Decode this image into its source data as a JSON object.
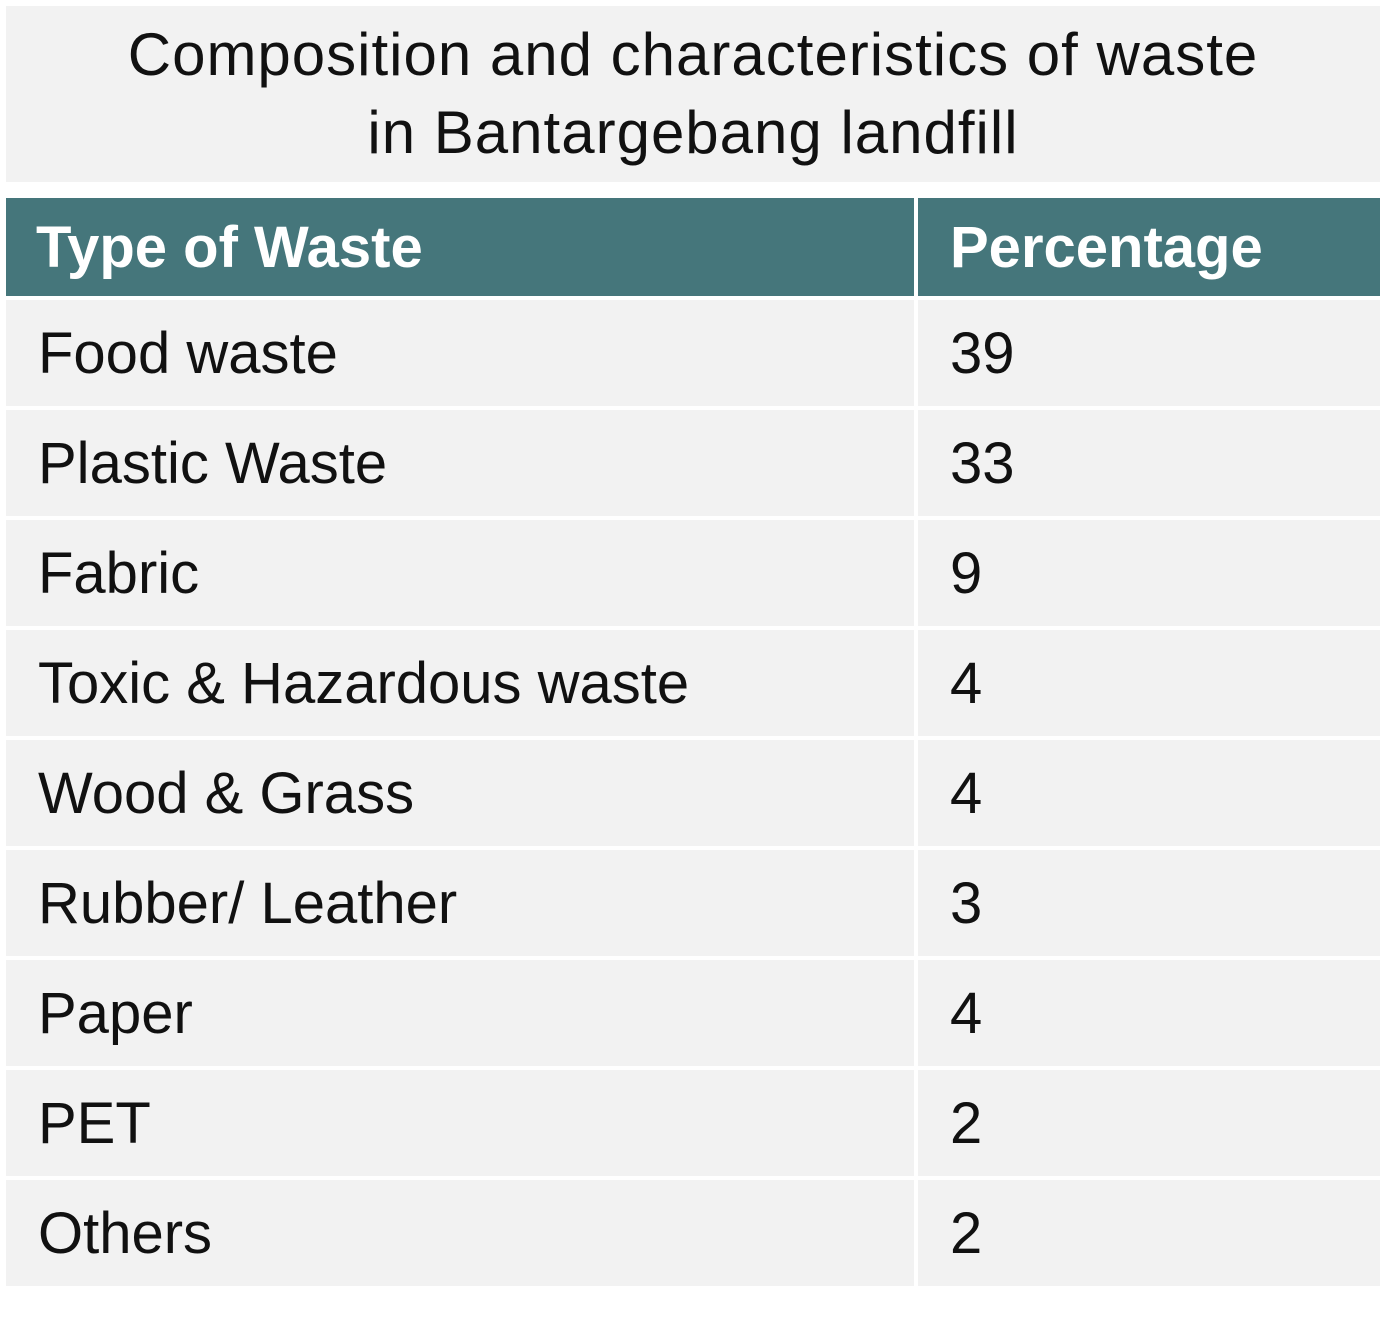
{
  "chart_data": {
    "type": "table",
    "title": "Composition and characteristics of waste in Bantargebang landfill",
    "columns": [
      "Type of Waste",
      "Percentage"
    ],
    "rows": [
      {
        "type": "Food waste",
        "percentage": "39"
      },
      {
        "type": "Plastic Waste",
        "percentage": "33"
      },
      {
        "type": "Fabric",
        "percentage": "9"
      },
      {
        "type": "Toxic & Hazardous waste",
        "percentage": "4"
      },
      {
        "type": "Wood & Grass",
        "percentage": "4"
      },
      {
        "type": "Rubber/ Leather",
        "percentage": "3"
      },
      {
        "type": "Paper",
        "percentage": "4"
      },
      {
        "type": "PET",
        "percentage": "2"
      },
      {
        "type": "Others",
        "percentage": "2"
      }
    ]
  },
  "colors": {
    "header_bg": "#45767b",
    "header_text": "#ffffff",
    "cell_bg": "#f2f2f2",
    "text": "#111111"
  }
}
